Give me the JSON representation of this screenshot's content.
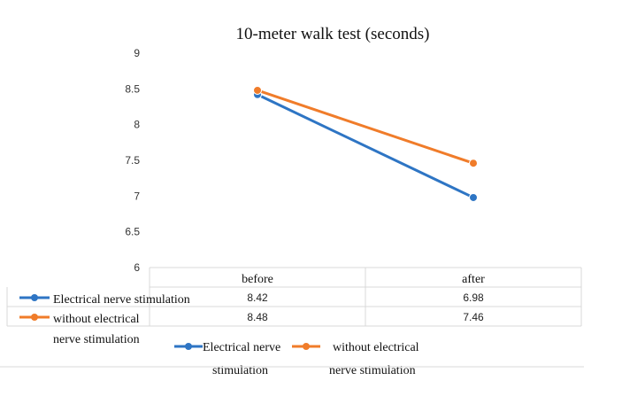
{
  "chart_data": {
    "type": "line",
    "title": "10-meter walk test (seconds)",
    "categories": [
      "before",
      "after"
    ],
    "ylim": [
      6,
      9
    ],
    "yticks": [
      "9",
      "8.5",
      "8",
      "7.5",
      "7",
      "6.5",
      "6"
    ],
    "series": [
      {
        "name": "Electrical nerve stimulation",
        "values": [
          8.42,
          6.98
        ],
        "labels": [
          "8.42",
          "6.98"
        ],
        "color": "#2e75c4"
      },
      {
        "name": "without electrical nerve stimulation",
        "values": [
          8.48,
          7.46
        ],
        "labels": [
          "8.48",
          "7.46"
        ],
        "color": "#f07c2a"
      }
    ],
    "table": {
      "row_labels": [
        [
          "Electrical nerve stimulation"
        ],
        [
          "without electrical",
          "nerve stimulation"
        ]
      ]
    },
    "legend": {
      "placement": "bottom",
      "entries": [
        [
          "Electrical nerve",
          "stimulation"
        ],
        [
          "without electrical",
          "nerve stimulation"
        ]
      ]
    },
    "grid": false
  }
}
